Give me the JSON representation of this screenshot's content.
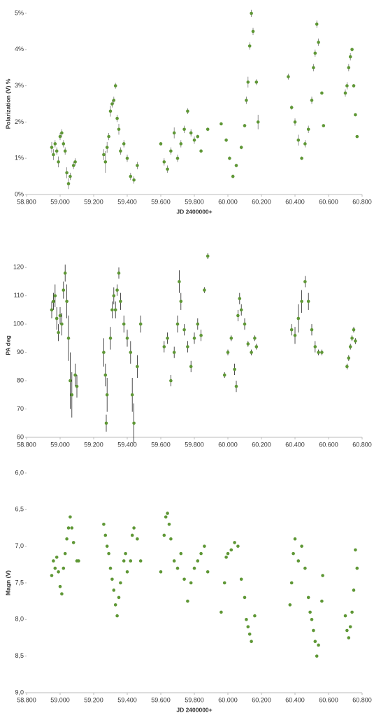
{
  "chart_data": [
    {
      "type": "scatter",
      "y_label": "Polarization (V) %",
      "x_label": "JD 2400000+",
      "color": "#5e9735",
      "xlim": [
        58800,
        60800
      ],
      "xticks": [
        {
          "value": 58800,
          "label": "58.800"
        },
        {
          "value": 59000,
          "label": "59.000"
        },
        {
          "value": 59200,
          "label": "59.200"
        },
        {
          "value": 59400,
          "label": "59.400"
        },
        {
          "value": 59600,
          "label": "59.600"
        },
        {
          "value": 59800,
          "label": "59.800"
        },
        {
          "value": 60000,
          "label": "60.000"
        },
        {
          "value": 60200,
          "label": "60.200"
        },
        {
          "value": 60400,
          "label": "60.400"
        },
        {
          "value": 60600,
          "label": "60.600"
        },
        {
          "value": 60800,
          "label": "60.800"
        }
      ],
      "ylim": [
        0,
        5
      ],
      "yticks": [
        {
          "value": 0,
          "label": "0%"
        },
        {
          "value": 1,
          "label": "1%"
        },
        {
          "value": 2,
          "label": "2%"
        },
        {
          "value": 3,
          "label": "3%"
        },
        {
          "value": 4,
          "label": "4%"
        },
        {
          "value": 5,
          "label": "5%"
        }
      ],
      "x": [
        58950,
        58960,
        58970,
        58980,
        58990,
        59000,
        59010,
        59020,
        59030,
        59040,
        59050,
        59060,
        59080,
        59090,
        59260,
        59270,
        59280,
        59290,
        59300,
        59310,
        59320,
        59330,
        59340,
        59350,
        59360,
        59380,
        59400,
        59420,
        59440,
        59460,
        59600,
        59620,
        59640,
        59660,
        59680,
        59700,
        59720,
        59740,
        59760,
        59780,
        59800,
        59820,
        59840,
        59880,
        59960,
        59990,
        60010,
        60030,
        60050,
        60080,
        60100,
        60110,
        60120,
        60130,
        60140,
        60150,
        60170,
        60180,
        60360,
        60380,
        60400,
        60420,
        60440,
        60460,
        60480,
        60500,
        60510,
        60520,
        60530,
        60540,
        60560,
        60570,
        60700,
        60710,
        60720,
        60730,
        60740,
        60750,
        60760,
        60770
      ],
      "values": [
        1.3,
        1.1,
        1.4,
        1.2,
        0.9,
        1.6,
        1.7,
        1.4,
        1.2,
        0.6,
        0.3,
        0.5,
        0.8,
        0.9,
        1.1,
        0.9,
        1.3,
        1.6,
        2.3,
        2.5,
        2.6,
        3.0,
        2.1,
        1.8,
        1.2,
        1.4,
        1.0,
        0.5,
        0.4,
        0.8,
        1.4,
        0.9,
        0.7,
        1.2,
        1.7,
        1.0,
        1.4,
        1.8,
        2.3,
        1.7,
        1.5,
        1.6,
        1.2,
        1.8,
        1.95,
        1.5,
        1.0,
        0.5,
        0.8,
        1.3,
        1.9,
        2.6,
        3.1,
        4.1,
        5.0,
        4.5,
        3.1,
        2.0,
        3.25,
        2.4,
        2.0,
        1.5,
        1.0,
        1.4,
        1.8,
        2.6,
        3.5,
        3.9,
        4.7,
        4.2,
        2.8,
        1.9,
        2.8,
        3.0,
        3.5,
        3.8,
        4.0,
        3.0,
        2.2,
        1.6
      ],
      "errors": [
        0.15,
        0.15,
        0.1,
        0.1,
        0.15,
        0.1,
        0.1,
        0.1,
        0.1,
        0.15,
        0.15,
        0.1,
        0.1,
        0.1,
        0.15,
        0.3,
        0.15,
        0.1,
        0.15,
        0.1,
        0.1,
        0.08,
        0.1,
        0.15,
        0.1,
        0.1,
        0.1,
        0.1,
        0.1,
        0.1,
        0.05,
        0.1,
        0.1,
        0.1,
        0.15,
        0.1,
        0.1,
        0.1,
        0.08,
        0.1,
        0.1,
        0.05,
        0.05,
        0.05,
        0.03,
        0.05,
        0.05,
        0.05,
        0.05,
        0.05,
        0.05,
        0.1,
        0.15,
        0.1,
        0.1,
        0.1,
        0.08,
        0.2,
        0.08,
        0.06,
        0.1,
        0.15,
        0.05,
        0.1,
        0.1,
        0.1,
        0.1,
        0.1,
        0.1,
        0.1,
        0.03,
        0.03,
        0.1,
        0.1,
        0.1,
        0.1,
        0.05,
        0.05,
        0.03,
        0.03
      ]
    },
    {
      "type": "scatter",
      "y_label": "PA deg",
      "color": "#5e9735",
      "xlim": [
        58800,
        60800
      ],
      "xticks": [
        {
          "value": 58800,
          "label": "58.800"
        },
        {
          "value": 59000,
          "label": "59.000"
        },
        {
          "value": 59200,
          "label": "59.200"
        },
        {
          "value": 59400,
          "label": "59.400"
        },
        {
          "value": 59600,
          "label": "59.600"
        },
        {
          "value": 59800,
          "label": "59.800"
        },
        {
          "value": 60000,
          "label": "60.000"
        },
        {
          "value": 60200,
          "label": "60.200"
        },
        {
          "value": 60400,
          "label": "60.400"
        },
        {
          "value": 60600,
          "label": "60.600"
        },
        {
          "value": 60800,
          "label": "60.800"
        }
      ],
      "ylim": [
        60,
        125
      ],
      "yticks": [
        60,
        70,
        80,
        90,
        100,
        110,
        120
      ],
      "x": [
        58950,
        58960,
        58970,
        58980,
        58990,
        59000,
        59010,
        59020,
        59030,
        59040,
        59050,
        59060,
        59070,
        59090,
        59100,
        59260,
        59270,
        59275,
        59280,
        59300,
        59310,
        59320,
        59330,
        59340,
        59350,
        59360,
        59380,
        59400,
        59420,
        59430,
        59440,
        59460,
        59480,
        59620,
        59640,
        59660,
        59680,
        59700,
        59710,
        59720,
        59740,
        59760,
        59780,
        59800,
        59820,
        59840,
        59860,
        59880,
        59980,
        60000,
        60020,
        60040,
        60050,
        60060,
        60070,
        60080,
        60100,
        60120,
        60140,
        60160,
        60170,
        60380,
        60400,
        60420,
        60440,
        60460,
        60480,
        60500,
        60520,
        60540,
        60560,
        60710,
        60720,
        60730,
        60740,
        60750,
        60760
      ],
      "values": [
        105,
        108,
        110,
        102,
        97,
        103,
        100,
        112,
        118,
        108,
        95,
        80,
        75,
        82,
        78,
        90,
        82,
        65,
        75,
        95,
        105,
        110,
        105,
        112,
        118,
        108,
        100,
        95,
        90,
        75,
        65,
        85,
        100,
        92,
        95,
        80,
        90,
        100,
        115,
        108,
        98,
        92,
        85,
        95,
        100,
        96,
        112,
        124,
        82,
        90,
        95,
        84,
        78,
        103,
        109,
        105,
        100,
        93,
        90,
        95,
        92,
        98,
        96,
        102,
        108,
        115,
        108,
        98,
        92,
        90,
        90,
        85,
        88,
        92,
        95,
        98,
        94
      ],
      "errors": [
        3,
        3,
        4,
        4,
        3,
        3,
        4,
        3,
        3,
        6,
        8,
        10,
        8,
        4,
        4,
        5,
        4,
        3,
        6,
        4,
        3,
        3,
        3,
        2,
        2,
        3,
        3,
        3,
        4,
        6,
        7,
        4,
        3,
        2,
        2,
        2,
        2,
        3,
        4,
        3,
        2,
        2,
        2,
        2,
        2,
        2,
        1,
        1,
        1,
        1,
        1,
        2,
        2,
        2,
        2,
        2,
        2,
        1,
        1,
        1,
        1,
        2,
        3,
        5,
        4,
        2,
        3,
        2,
        2,
        1,
        1,
        1,
        1,
        1,
        1,
        1,
        1
      ]
    },
    {
      "type": "scatter",
      "y_label": "Magn (V)",
      "x_label": "JD 2400000+",
      "color": "#5e9735",
      "xlim": [
        58800,
        60800
      ],
      "xticks": [
        {
          "value": 58800,
          "label": "58.800"
        },
        {
          "value": 59000,
          "label": "59.000"
        },
        {
          "value": 59200,
          "label": "59.200"
        },
        {
          "value": 59400,
          "label": "59.400"
        },
        {
          "value": 59600,
          "label": "59.600"
        },
        {
          "value": 59800,
          "label": "59.800"
        },
        {
          "value": 60000,
          "label": "60.000"
        },
        {
          "value": 60200,
          "label": "60.200"
        },
        {
          "value": 60400,
          "label": "60.400"
        },
        {
          "value": 60600,
          "label": "60.600"
        },
        {
          "value": 60800,
          "label": "60.800"
        }
      ],
      "ylim": [
        9,
        6
      ],
      "yticks": [
        {
          "value": 6,
          "label": "6,0"
        },
        {
          "value": 6.5,
          "label": "6,5"
        },
        {
          "value": 7,
          "label": "7,0"
        },
        {
          "value": 7.5,
          "label": "7,5"
        },
        {
          "value": 8,
          "label": "8,0"
        },
        {
          "value": 8.5,
          "label": "8,5"
        },
        {
          "value": 9,
          "label": "9,0"
        }
      ],
      "x": [
        58950,
        58960,
        58970,
        58980,
        58990,
        59000,
        59010,
        59020,
        59030,
        59040,
        59050,
        59060,
        59070,
        59080,
        59100,
        59110,
        59260,
        59270,
        59280,
        59290,
        59300,
        59310,
        59320,
        59330,
        59340,
        59350,
        59360,
        59380,
        59390,
        59400,
        59420,
        59430,
        59440,
        59460,
        59480,
        59600,
        59620,
        59630,
        59640,
        59650,
        59660,
        59680,
        59700,
        59720,
        59740,
        59760,
        59780,
        59800,
        59820,
        59840,
        59860,
        59880,
        59960,
        59980,
        59990,
        60000,
        60020,
        60040,
        60060,
        60080,
        60100,
        60110,
        60120,
        60130,
        60140,
        60160,
        60370,
        60380,
        60390,
        60400,
        60420,
        60440,
        60460,
        60480,
        60490,
        60500,
        60510,
        60520,
        60530,
        60540,
        60560,
        60565,
        60700,
        60710,
        60720,
        60730,
        60740,
        60750,
        60760,
        60770
      ],
      "values": [
        7.4,
        7.2,
        7.3,
        7.15,
        7.35,
        7.55,
        7.65,
        7.3,
        7.1,
        6.9,
        6.75,
        6.6,
        6.75,
        6.95,
        7.2,
        7.2,
        6.7,
        6.85,
        7.0,
        7.1,
        7.3,
        7.45,
        7.6,
        7.8,
        7.95,
        7.7,
        7.5,
        7.2,
        7.1,
        7.35,
        7.2,
        6.85,
        6.75,
        6.9,
        7.2,
        7.35,
        6.85,
        6.6,
        6.55,
        6.7,
        6.9,
        7.2,
        7.3,
        7.1,
        7.45,
        7.75,
        7.5,
        7.3,
        7.2,
        7.1,
        7.0,
        7.35,
        7.9,
        7.5,
        7.15,
        7.1,
        7.05,
        6.95,
        7.0,
        7.45,
        7.7,
        8.0,
        8.1,
        8.2,
        8.3,
        7.95,
        7.8,
        7.5,
        7.1,
        6.9,
        7.2,
        7.0,
        7.3,
        7.7,
        7.9,
        8.0,
        8.15,
        8.3,
        8.5,
        8.35,
        7.75,
        7.4,
        7.95,
        8.15,
        8.25,
        8.1,
        7.9,
        7.6,
        7.05,
        7.3
      ]
    }
  ]
}
